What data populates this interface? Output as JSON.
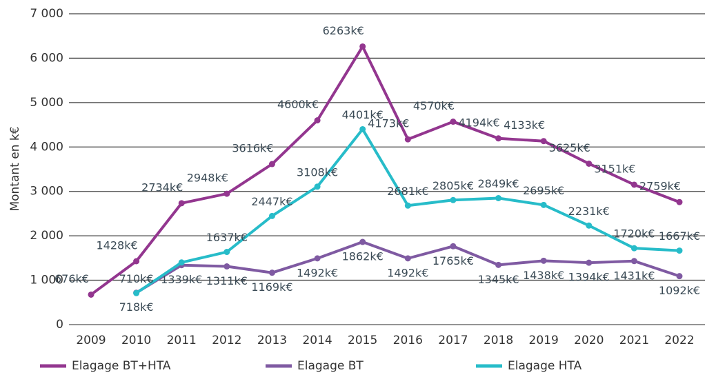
{
  "chart_data": {
    "type": "line",
    "y_label": "Montant en k€",
    "categories": [
      "2009",
      "2010",
      "2011",
      "2012",
      "2013",
      "2014",
      "2015",
      "2016",
      "2017",
      "2018",
      "2019",
      "2020",
      "2021",
      "2022"
    ],
    "series": [
      {
        "name": "Elagage BT+HTA",
        "color": "#93368f",
        "values": [
          676,
          1428,
          2734,
          2948,
          3616,
          4600,
          6263,
          4173,
          4570,
          4194,
          4133,
          3625,
          3151,
          2759
        ],
        "value_labels": [
          "676k€",
          "1428k€",
          "2734k€",
          "2948k€",
          "3616k€",
          "4600k€",
          "6263k€",
          "4173k€",
          "4570k€",
          "4194k€",
          "4133k€",
          "3625k€",
          "3151k€",
          "2759k€"
        ]
      },
      {
        "name": "Elagage BT",
        "color": "#7f5aa2",
        "values": [
          null,
          718,
          1339,
          1311,
          1169,
          1492,
          1862,
          1492,
          1765,
          1345,
          1438,
          1394,
          1431,
          1092
        ],
        "value_labels": [
          null,
          "718k€",
          "1339k€",
          "1311k€",
          "1169k€",
          "1492k€",
          "1862k€",
          "1492k€",
          "1765k€",
          "1345k€",
          "1438k€",
          "1394k€",
          "1431k€",
          "1092k€"
        ]
      },
      {
        "name": "Elagage HTA",
        "color": "#27bcc9",
        "values": [
          null,
          710,
          1400,
          1637,
          2447,
          3108,
          4401,
          2681,
          2805,
          2849,
          2695,
          2231,
          1720,
          1667
        ],
        "value_labels": [
          null,
          "710k€",
          null,
          "1637k€",
          "2447k€",
          "3108k€",
          "4401k€",
          "2681k€",
          "2805k€",
          "2849k€",
          "2695k€",
          "2231k€",
          "1720k€",
          "1667k€"
        ]
      }
    ],
    "ylim": [
      0,
      7000
    ],
    "yticks": [
      0,
      {
        "value": 1000,
        "label": "1 000"
      },
      {
        "value": 2000,
        "label": "2 000"
      },
      {
        "value": 3000,
        "label": "3 000"
      },
      {
        "value": 4000,
        "label": "4 000"
      },
      {
        "value": 5000,
        "label": "5 000"
      },
      {
        "value": 6000,
        "label": "6 000"
      },
      {
        "value": 7000,
        "label": "7 000"
      }
    ],
    "grid": true
  }
}
